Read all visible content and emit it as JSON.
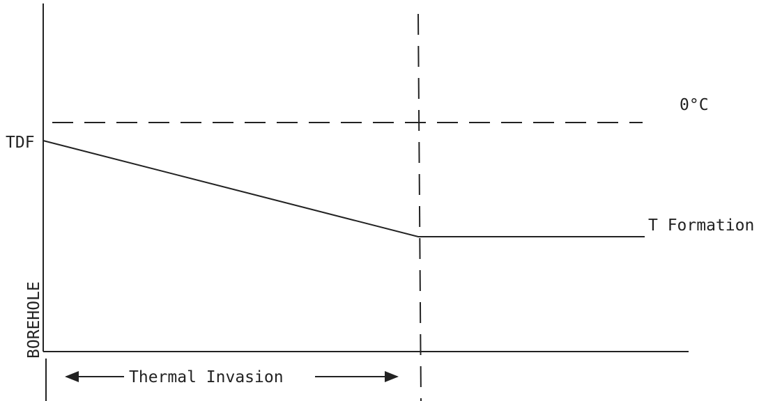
{
  "labels": {
    "tdf": "TDF",
    "zero_c": "0°C",
    "t_formation": "T Formation",
    "borehole": "BOREHOLE",
    "thermal_invasion": "Thermal Invasion"
  }
}
